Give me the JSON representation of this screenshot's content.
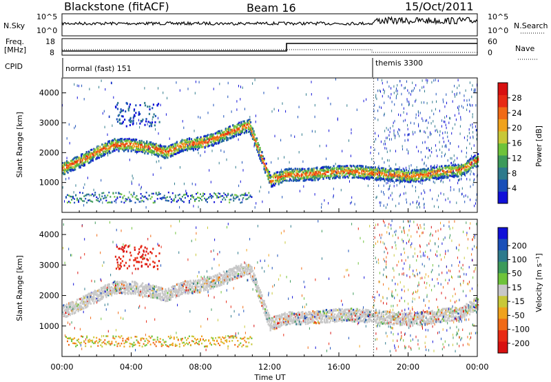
{
  "header": {
    "station": "Blackstone (fitACF)",
    "beam": "Beam 16",
    "date": "15/Oct/2011"
  },
  "noise_panel": {
    "left_label": "N.Sky",
    "left_ticks": [
      "10^5",
      "10^0"
    ],
    "right_label": "N.Search",
    "right_ticks": [
      "10^5",
      "10^0"
    ]
  },
  "freq_panel": {
    "left_label_1": "Freq.",
    "left_label_2": "[MHz]",
    "left_ticks": [
      "18",
      "8"
    ],
    "right_label": "Nave",
    "right_ticks": [
      "60",
      "0"
    ]
  },
  "cpid_panel": {
    "label": "CPID",
    "modes": [
      "normal (fast) 151",
      "themis 3300"
    ]
  },
  "colors": {
    "scale": [
      "#1010d8",
      "#1a4fb8",
      "#2e7a8c",
      "#3d9a5a",
      "#6ec33a",
      "#c8c838",
      "#f0a21c",
      "#f06a16",
      "#e82a14",
      "#d81010"
    ],
    "ground_scatter": "#c8c8c8"
  },
  "chart_data": [
    {
      "type": "heatmap",
      "title": "",
      "xlabel": "Time UT",
      "ylabel": "Slant Range [km]",
      "xlim": [
        "00:00",
        "24:00"
      ],
      "ylim": [
        0,
        4500
      ],
      "x_ticks": [
        "00:00",
        "04:00",
        "08:00",
        "12:00",
        "16:00",
        "20:00",
        "00:00"
      ],
      "y_ticks": [
        1000,
        2000,
        3000,
        4000
      ],
      "colorbar": {
        "label": "Power [dB]",
        "range": [
          0,
          30
        ],
        "ticks": [
          "4",
          "8",
          "12",
          "16",
          "20",
          "24",
          "28"
        ]
      },
      "series": [
        {
          "x": [
            "00:00",
            "01:00",
            "02:00",
            "03:00",
            "04:00",
            "05:00",
            "06:00",
            "07:00",
            "08:00",
            "09:00",
            "10:00",
            "10:48",
            "11:30",
            "12:00",
            "13:00",
            "14:00",
            "15:00",
            "16:00",
            "17:00",
            "18:00",
            "19:00",
            "20:00",
            "21:00",
            "22:00",
            "23:00",
            "24:00"
          ],
          "y": [
            1500,
            1750,
            2050,
            2300,
            2300,
            2200,
            2050,
            2300,
            2350,
            2550,
            2800,
            2950,
            1900,
            1100,
            1300,
            1300,
            1350,
            1400,
            1400,
            1350,
            1300,
            1250,
            1300,
            1400,
            1450,
            1800
          ]
        }
      ]
    },
    {
      "type": "heatmap",
      "title": "",
      "xlabel": "Time UT",
      "ylabel": "Slant Range [km]",
      "xlim": [
        "00:00",
        "24:00"
      ],
      "ylim": [
        0,
        4500
      ],
      "x_ticks": [
        "00:00",
        "04:00",
        "08:00",
        "12:00",
        "16:00",
        "20:00",
        "00:00"
      ],
      "y_ticks": [
        1000,
        2000,
        3000,
        4000
      ],
      "x_labels": [
        "00:00",
        "04:00",
        "08:00",
        "12:00",
        "16:00",
        "20:00",
        "00:00"
      ],
      "colorbar": {
        "label": "Velocity [m s⁻¹]",
        "ticks": [
          "200",
          "100",
          "50",
          "15",
          "-15",
          "-50",
          "-100",
          "-200"
        ]
      }
    }
  ]
}
